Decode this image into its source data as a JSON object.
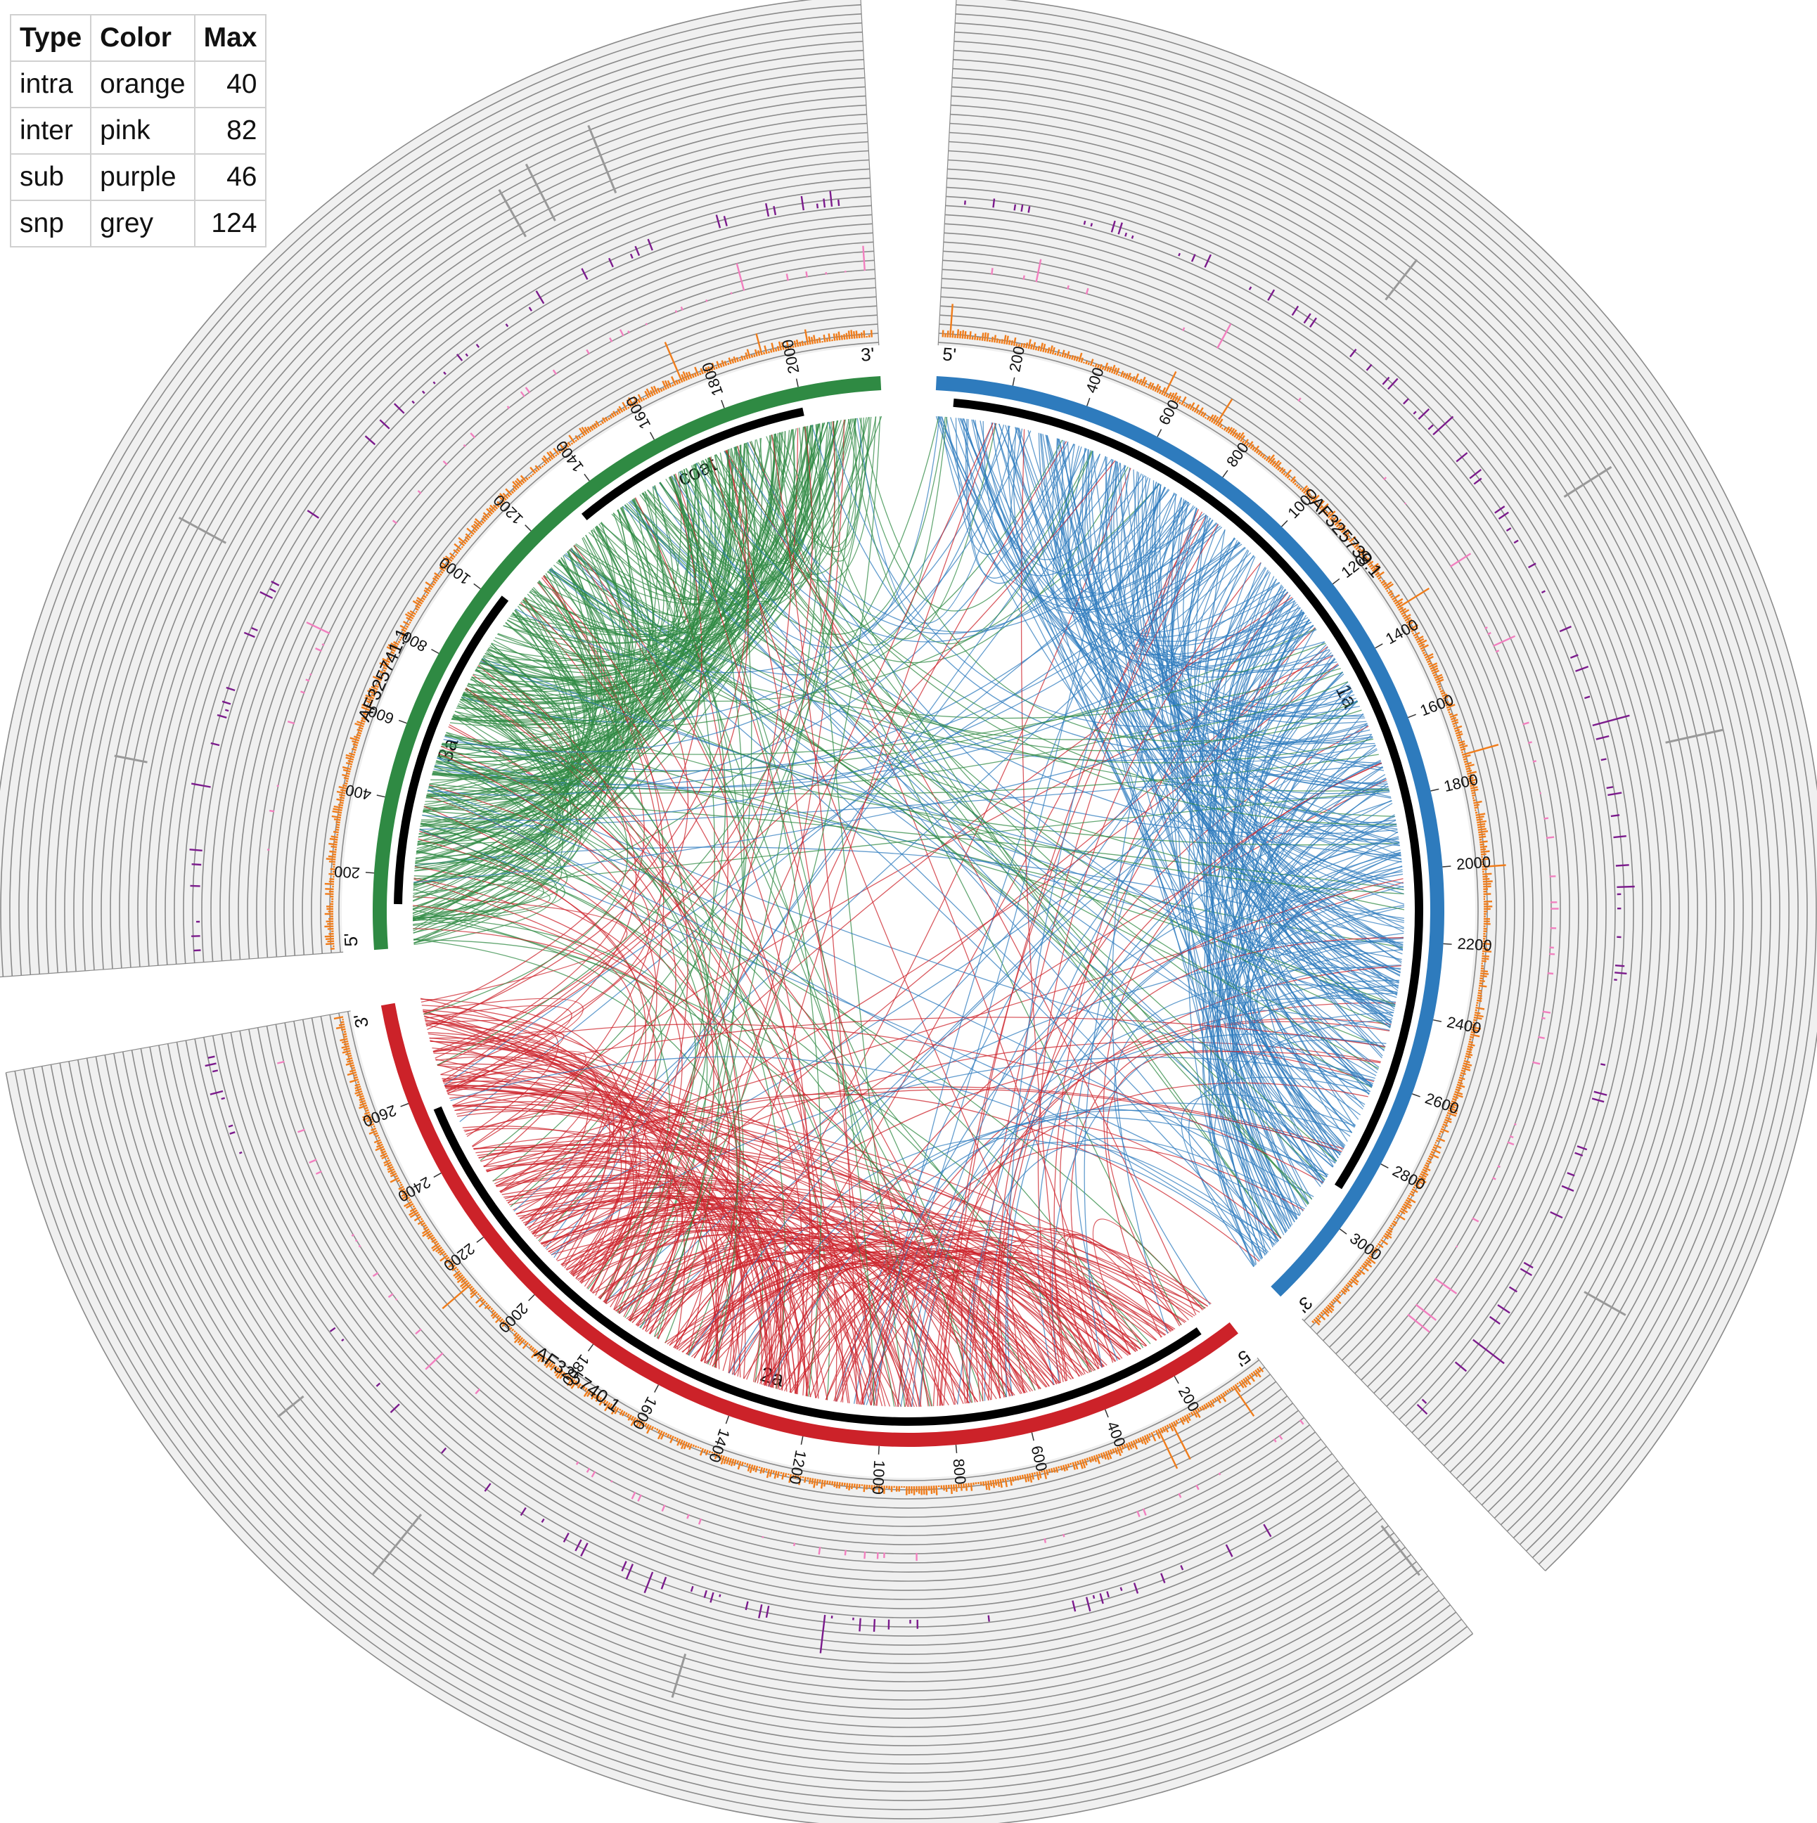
{
  "legend": {
    "headers": [
      "Type",
      "Color",
      "Max"
    ],
    "rows": [
      {
        "type": "intra",
        "color": "orange",
        "max": "40"
      },
      {
        "type": "inter",
        "color": "pink",
        "max": "82"
      },
      {
        "type": "sub",
        "color": "purple",
        "max": "46"
      },
      {
        "type": "snp",
        "color": "grey",
        "max": "124"
      }
    ]
  },
  "colors": {
    "intra": "#f07c1a",
    "inter": "#f27fbf",
    "sub": "#7b1a8c",
    "snp": "#999999",
    "segment1": "#2e7bbd",
    "segment2": "#cc2229",
    "segment3": "#2f8a43",
    "track_bg": "#f0f0f0",
    "track_line": "#8a8a8a",
    "gene": "#000000"
  },
  "chart_data": {
    "type": "circos",
    "segments": [
      {
        "id": "seg1",
        "label": "AF325739.1",
        "length": 3234,
        "gene": "1a",
        "gene_range": [
          50,
          2910
        ],
        "color": "segment1",
        "ticks": [
          200,
          400,
          600,
          800,
          1000,
          1200,
          1400,
          1600,
          1800,
          2000,
          2200,
          2400,
          2600,
          2800,
          3000
        ],
        "five_label": "5'",
        "three_label": "3'"
      },
      {
        "id": "seg2",
        "label": "AF325740.1",
        "length": 2865,
        "gene": "2a",
        "gene_range": [
          80,
          2560
        ],
        "color": "segment2",
        "ticks": [
          200,
          400,
          600,
          800,
          1000,
          1200,
          1400,
          1600,
          1800,
          2000,
          2200,
          2400,
          2600
        ],
        "five_label": "5'",
        "three_label": "3'"
      },
      {
        "id": "seg3",
        "label": "AF325741.1",
        "length": 2216,
        "genes": [
          {
            "name": "3a",
            "range": [
              120,
              1020
            ]
          },
          {
            "name": "coat",
            "range": [
              1330,
              2000
            ]
          }
        ],
        "color": "segment3",
        "ticks": [
          200,
          400,
          600,
          800,
          1000,
          1200,
          1400,
          1600,
          1800,
          2000
        ],
        "five_label": "5'",
        "three_label": "3'"
      }
    ],
    "tracks": [
      {
        "name": "intra",
        "color": "intra",
        "max": 40
      },
      {
        "name": "inter",
        "color": "inter",
        "max": 82
      },
      {
        "name": "sub",
        "color": "sub",
        "max": 46
      },
      {
        "name": "snp",
        "color": "snp",
        "max": 124
      }
    ],
    "links_description_count": 900
  }
}
